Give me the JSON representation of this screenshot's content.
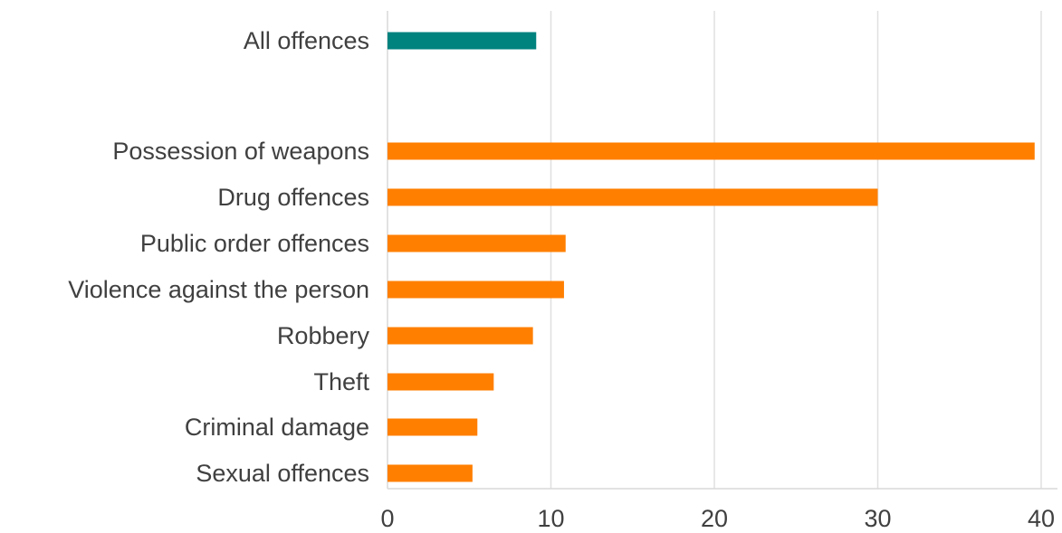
{
  "chart_data": {
    "type": "bar",
    "orientation": "horizontal",
    "categories": [
      "All offences",
      "Possession of weapons",
      "Drug offences",
      "Public order offences",
      "Violence against the person",
      "Robbery",
      "Theft",
      "Criminal damage",
      "Sexual offences"
    ],
    "values": [
      9.1,
      39.6,
      30.0,
      10.9,
      10.8,
      8.9,
      6.5,
      5.5,
      5.2
    ],
    "bar_colors": [
      "#00827f",
      "#ff7f00",
      "#ff7f00",
      "#ff7f00",
      "#ff7f00",
      "#ff7f00",
      "#ff7f00",
      "#ff7f00",
      "#ff7f00"
    ],
    "xlim": [
      0,
      40
    ],
    "x_ticks": [
      "0",
      "10",
      "20",
      "30",
      "40"
    ],
    "grid": "vertical",
    "title": "",
    "xlabel": "",
    "ylabel": ""
  },
  "colors": {
    "highlight": "#00827f",
    "accent": "#ff7f00",
    "grid": "#e0e0e0",
    "text": "#404040"
  }
}
